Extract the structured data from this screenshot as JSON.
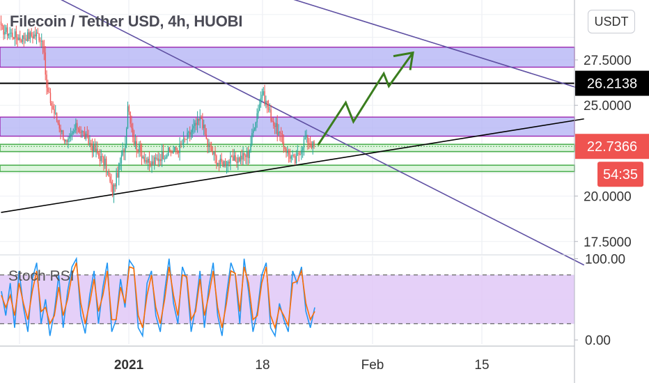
{
  "title": "Filecoin / Tether USD, 4h, HUOBI",
  "currency_button": "USDT",
  "oscillator_label": "Stoch RSI",
  "colors": {
    "up": "#26a69a",
    "down": "#ef5350",
    "zone_fill": "#b3b3f5",
    "zone_border": "#9c27b0",
    "support_green": "#4caf50",
    "trend_purple": "#5e4fa2",
    "trend_black": "#000000",
    "arrow_green": "#3a7d1e",
    "k_line": "#2196f3",
    "d_line": "#ff6d00",
    "osc_band": "#e1c8f7"
  },
  "chart_data": [
    {
      "type": "candlestick",
      "title": "Filecoin / Tether USD, 4h, HUOBI",
      "ylim": [
        16.8,
        30.8
      ],
      "y_ticks": [
        "17.5000",
        "20.0000",
        "25.0000",
        "27.5000"
      ],
      "x_ticks": [
        "2021",
        "18",
        "Feb",
        "15"
      ],
      "price_labels": [
        {
          "value": 26.2138,
          "text": "26.2138",
          "style": "black"
        },
        {
          "value": 22.7366,
          "text": "22.7366",
          "style": "red"
        },
        {
          "value": 21.55,
          "text": "54:35",
          "style": "red-countdown"
        }
      ],
      "zones": [
        {
          "from": 27.1,
          "to": 28.2,
          "color": "purple"
        },
        {
          "from": 23.3,
          "to": 24.35,
          "color": "purple"
        },
        {
          "from": 22.45,
          "to": 22.85,
          "color": "green"
        },
        {
          "from": 21.35,
          "to": 21.7,
          "color": "green"
        }
      ],
      "horizontal_line": {
        "value": 26.2138,
        "color": "black"
      },
      "trendlines": [
        {
          "from": [
            0,
            32.5
          ],
          "to": [
            460,
            16.2
          ],
          "color": "purple"
        },
        {
          "from": [
            200,
            31.5
          ],
          "to": [
            460,
            25.85
          ],
          "color": "purple"
        },
        {
          "from": [
            0,
            19.1
          ],
          "to": [
            460,
            24.25
          ],
          "color": "black"
        }
      ],
      "projection_path": [
        [
          250,
          22.8
        ],
        [
          272,
          25.15
        ],
        [
          278,
          24.1
        ],
        [
          302,
          26.75
        ],
        [
          306,
          26.05
        ],
        [
          325,
          27.9
        ]
      ],
      "anchors": [
        {
          "index": 0,
          "price": 29.2
        },
        {
          "index": 15,
          "price": 28.7
        },
        {
          "index": 20,
          "price": 28.8
        },
        {
          "index": 29,
          "price": 28.9
        },
        {
          "index": 33,
          "price": 28.5
        },
        {
          "index": 36,
          "price": 25.9
        },
        {
          "index": 42,
          "price": 24.6
        },
        {
          "index": 52,
          "price": 22.8
        },
        {
          "index": 60,
          "price": 23.9
        },
        {
          "index": 72,
          "price": 22.7
        },
        {
          "index": 82,
          "price": 21.8
        },
        {
          "index": 88,
          "price": 20.2
        },
        {
          "index": 98,
          "price": 22.9
        },
        {
          "index": 100,
          "price": 25.1
        },
        {
          "index": 105,
          "price": 23.0
        },
        {
          "index": 117,
          "price": 21.7
        },
        {
          "index": 128,
          "price": 22.3
        },
        {
          "index": 140,
          "price": 22.6
        },
        {
          "index": 158,
          "price": 24.3
        },
        {
          "index": 163,
          "price": 22.8
        },
        {
          "index": 172,
          "price": 21.8
        },
        {
          "index": 185,
          "price": 22.0
        },
        {
          "index": 195,
          "price": 22.3
        },
        {
          "index": 202,
          "price": 24.6
        },
        {
          "index": 206,
          "price": 25.7
        },
        {
          "index": 214,
          "price": 24.2
        },
        {
          "index": 226,
          "price": 22.4
        },
        {
          "index": 232,
          "price": 21.9
        },
        {
          "index": 240,
          "price": 23.2
        },
        {
          "index": 247,
          "price": 22.74
        }
      ]
    },
    {
      "type": "line",
      "title": "Stoch RSI",
      "ylim": [
        -5,
        103
      ],
      "y_ticks": [
        "0.00",
        "100.00"
      ],
      "band": [
        20,
        80
      ],
      "series": [
        {
          "name": "K",
          "values": [
            60,
            30,
            70,
            15,
            85,
            40,
            10,
            75,
            95,
            20,
            50,
            5,
            35,
            80,
            15,
            60,
            90,
            100,
            30,
            8,
            55,
            85,
            20,
            65,
            95,
            10,
            25,
            75,
            40,
            98,
            90,
            15,
            5,
            70,
            85,
            30,
            10,
            60,
            100,
            45,
            20,
            90,
            75,
            10,
            40,
            85,
            15,
            65,
            95,
            30,
            5,
            55,
            95,
            80,
            20,
            100,
            60,
            10,
            35,
            80,
            95,
            15,
            5,
            45,
            25,
            10,
            85,
            70,
            90,
            35,
            15,
            40
          ]
        },
        {
          "name": "D",
          "values": [
            55,
            40,
            55,
            30,
            70,
            45,
            25,
            60,
            85,
            35,
            40,
            20,
            30,
            65,
            30,
            50,
            80,
            95,
            45,
            20,
            45,
            75,
            35,
            55,
            85,
            25,
            25,
            65,
            45,
            90,
            88,
            30,
            15,
            55,
            80,
            40,
            20,
            50,
            90,
            55,
            30,
            80,
            78,
            25,
            35,
            75,
            30,
            55,
            85,
            40,
            15,
            45,
            85,
            82,
            35,
            90,
            70,
            25,
            30,
            70,
            90,
            30,
            15,
            40,
            30,
            18,
            70,
            72,
            85,
            45,
            25,
            35
          ]
        }
      ]
    }
  ]
}
